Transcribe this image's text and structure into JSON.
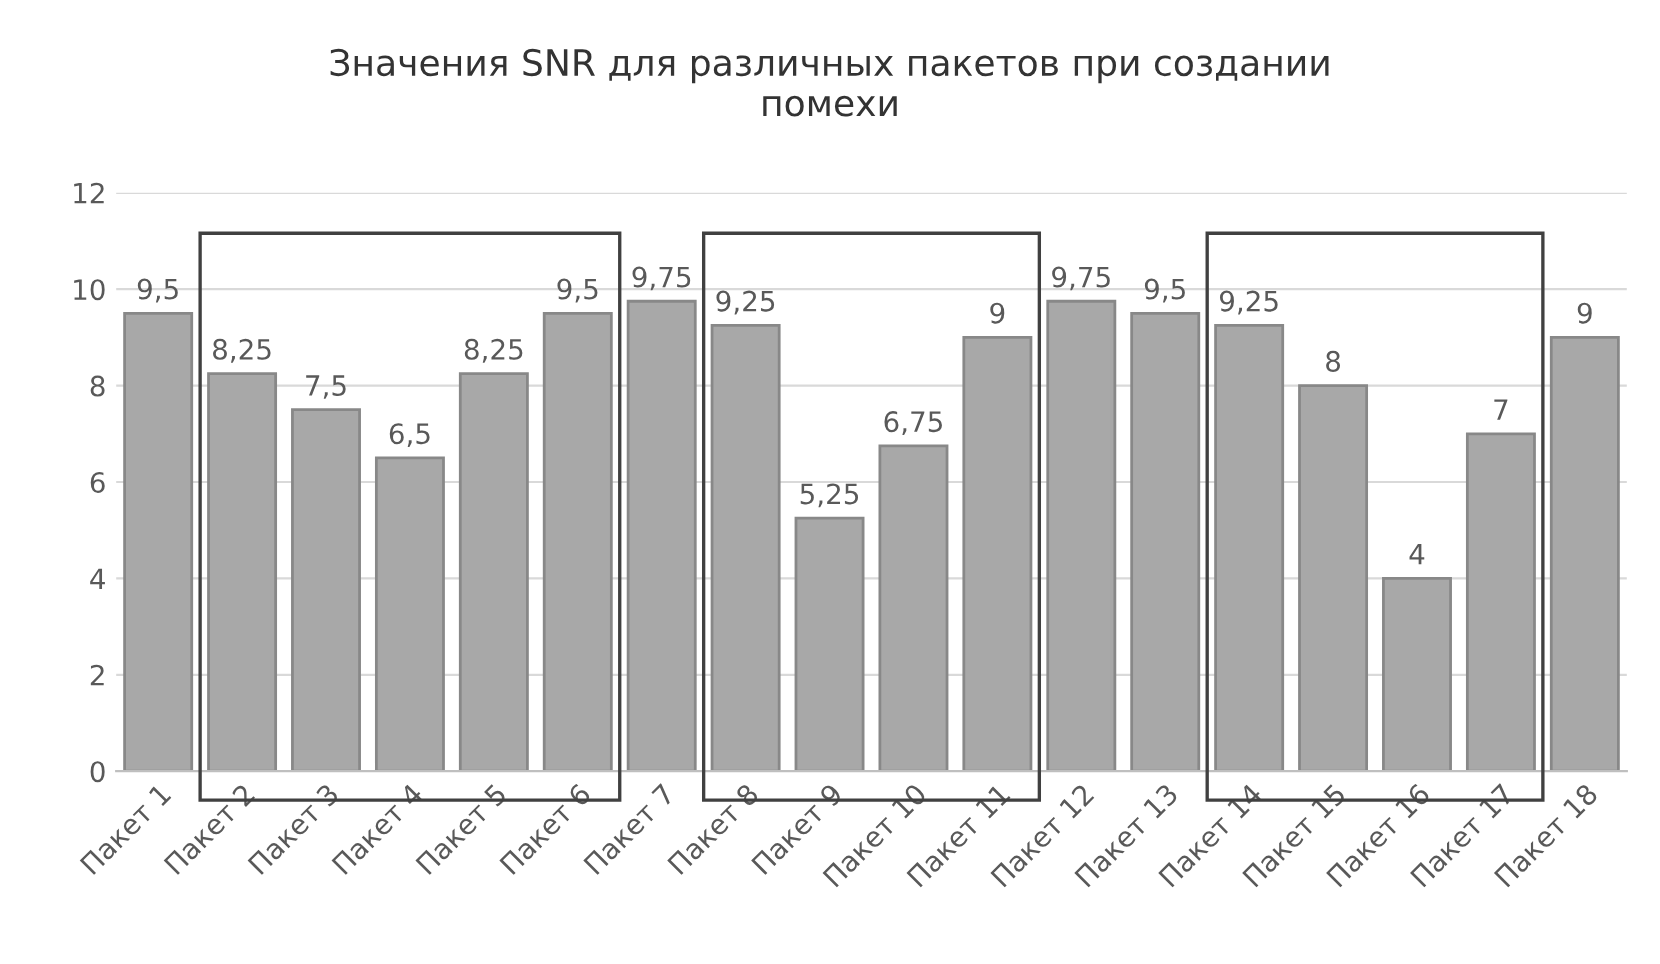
{
  "chart_data": {
    "type": "bar",
    "title": "Значения SNR для различных пакетов при создании\nпомехи",
    "categories": [
      "Пакет 1",
      "Пакет 2",
      "Пакет 3",
      "Пакет 4",
      "Пакет 5",
      "Пакет 6",
      "Пакет 7",
      "Пакет 8",
      "Пакет 9",
      "Пакет 10",
      "Пакет 11",
      "Пакет 12",
      "Пакет 13",
      "Пакет 14",
      "Пакет 15",
      "Пакет 16",
      "Пакет 17",
      "Пакет 18"
    ],
    "values": [
      9.5,
      8.25,
      7.5,
      6.5,
      8.25,
      9.5,
      9.75,
      9.25,
      5.25,
      6.75,
      9,
      9.75,
      9.5,
      9.25,
      8,
      4,
      7,
      9
    ],
    "value_labels": [
      "9,5",
      "8,25",
      "7,5",
      "6,5",
      "8,25",
      "9,5",
      "9,75",
      "9,25",
      "5,25",
      "6,75",
      "9",
      "9,75",
      "9,5",
      "9,25",
      "8",
      "4",
      "7",
      "9"
    ],
    "color": "#a8a8a8",
    "ylim": [
      0,
      12
    ],
    "yticks": [
      0,
      2,
      4,
      6,
      8,
      10,
      12
    ],
    "grid": "y"
  }
}
